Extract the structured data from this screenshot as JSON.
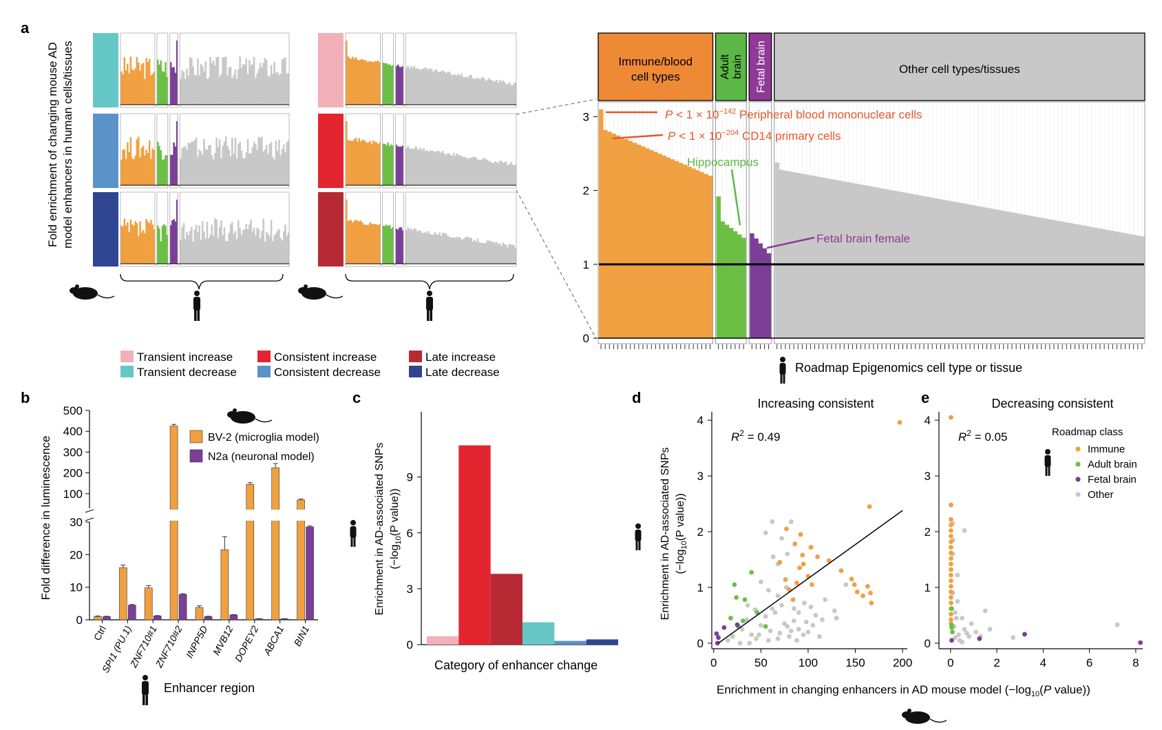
{
  "panel_labels": {
    "a": "a",
    "b": "b",
    "c": "c",
    "d": "d",
    "e": "e"
  },
  "colors": {
    "immune": "#f0a040",
    "adult_brain": "#6cbf45",
    "fetal_brain": "#7b3f98",
    "other": "#c8c8c8",
    "transient_increase": "#f2b0b8",
    "transient_decrease": "#66c7c7",
    "consistent_increase": "#e32530",
    "consistent_decrease": "#5b93c8",
    "late_increase": "#b82a33",
    "late_decrease": "#2e4592",
    "bv2": "#f0a040",
    "n2a": "#7b3f98",
    "header_immune": "#ee8a35",
    "header_adult": "#5cb846",
    "header_fetal": "#8f3a96",
    "header_other": "#c8c8c8"
  },
  "panel_a": {
    "ylabel_line1": "Fold enrichment of changing mouse AD",
    "ylabel_line2": "model enhancers in human cells/tissues",
    "legend": [
      {
        "label": "Transient increase",
        "color_key": "transient_increase"
      },
      {
        "label": "Transient decrease",
        "color_key": "transient_decrease"
      },
      {
        "label": "Consistent increase",
        "color_key": "consistent_increase"
      },
      {
        "label": "Consistent decrease",
        "color_key": "consistent_decrease"
      },
      {
        "label": "Late increase",
        "color_key": "late_increase"
      },
      {
        "label": "Late decrease",
        "color_key": "late_decrease"
      }
    ],
    "main_chart": {
      "type": "bar",
      "group_headers": [
        {
          "label_lines": [
            "Immune/blood",
            "cell types"
          ],
          "color_key": "header_immune"
        },
        {
          "label_lines": [
            "Adult",
            "brain"
          ],
          "color_key": "header_adult"
        },
        {
          "label_lines": [
            "Fetal brain"
          ],
          "color_key": "header_fetal"
        },
        {
          "label_lines": [
            "Other cell types/tissues"
          ],
          "color_key": "header_other"
        }
      ],
      "yticks": [
        "0",
        "1",
        "2",
        "3"
      ],
      "ylim": [
        0,
        3.2
      ],
      "reference_line": 1,
      "xlabel": "Roadmap Epigenomics cell type or tissue",
      "groups": [
        {
          "name": "Immune",
          "color_key": "immune",
          "count": 27,
          "start": 3.1,
          "second": 2.82,
          "end": 2.2
        },
        {
          "name": "Adult brain",
          "color_key": "adult_brain",
          "count": 7,
          "start": 1.92,
          "second": 1.58,
          "end": 1.36
        },
        {
          "name": "Fetal brain",
          "color_key": "fetal_brain",
          "count": 5,
          "start": 1.42,
          "second": 1.35,
          "end": 1.15
        },
        {
          "name": "Other",
          "color_key": "other",
          "count": 88,
          "start": 2.38,
          "second": 2.28,
          "end": 1.38
        }
      ],
      "annotations": [
        {
          "prefix": "P < 1 × 10",
          "exponent": "−142",
          "suffix": " Peripheral blood mononuclear cells",
          "color": "#e8562a"
        },
        {
          "prefix": "P < 1 × 10",
          "exponent": "−204",
          "suffix": " CD14 primary cells",
          "color": "#e8562a"
        },
        {
          "text": "Hippocampus",
          "color": "#5cb846"
        },
        {
          "text": "Fetal brain female",
          "color": "#8f3a96"
        }
      ]
    },
    "mini_charts": [
      {
        "color_key": "transient_decrease",
        "pattern": "noisy",
        "level": 0.55
      },
      {
        "color_key": "consistent_decrease",
        "pattern": "noisy",
        "level": 0.55
      },
      {
        "color_key": "late_decrease",
        "pattern": "noisy",
        "level": 0.5
      },
      {
        "color_key": "transient_increase",
        "pattern": "descending",
        "level": 0.7
      },
      {
        "color_key": "consistent_increase",
        "pattern": "descending",
        "level": 0.7
      },
      {
        "color_key": "late_increase",
        "pattern": "descending",
        "level": 0.65
      }
    ]
  },
  "panel_b": {
    "type": "bar",
    "ylabel": "Fold difference in luminescence",
    "xlabel": "Enhancer region",
    "categories": [
      "Ctrl",
      "SPI1 (PU.1)",
      "ZNF710#1",
      "ZNF710#2",
      "INPP5D",
      "MVB12",
      "DOPEY2",
      "ABCA1",
      "BIN1"
    ],
    "series": [
      {
        "name": "BV-2 (microglia model)",
        "color_key": "bv2",
        "values": [
          1.0,
          16.0,
          9.8,
          425,
          3.8,
          21.5,
          145,
          225,
          70
        ],
        "errors": [
          0.2,
          0.8,
          0.7,
          8,
          0.5,
          4.0,
          8,
          20,
          4
        ]
      },
      {
        "name": "N2a (neuronal model)",
        "color_key": "n2a",
        "values": [
          1.0,
          4.5,
          1.2,
          7.8,
          1.0,
          1.5,
          0.3,
          0.3,
          28.5
        ],
        "errors": [
          0.1,
          0.2,
          0.1,
          0.2,
          0.1,
          0.1,
          0.05,
          0.05,
          0.3
        ]
      }
    ],
    "yticks_lower": [
      "0",
      "10",
      "20",
      "30"
    ],
    "yticks_upper": [
      "100",
      "200",
      "300",
      "400",
      "500"
    ],
    "ylim_lower": [
      0,
      30
    ],
    "ylim_upper": [
      30,
      500
    ]
  },
  "panel_c": {
    "type": "bar",
    "ylabel_line1": "Enrichment in AD-associated SNPs",
    "ylabel_line2_prefix": "(−log",
    "ylabel_line2_sub": "10",
    "ylabel_line2_suffix": "(P value))",
    "xlabel": "Category of enhancer change",
    "categories": [
      "Transient increase",
      "Consistent increase",
      "Late increase",
      "Transient decrease",
      "Consistent decrease",
      "Late decrease"
    ],
    "values": [
      0.45,
      10.7,
      3.8,
      1.2,
      0.2,
      0.28
    ],
    "color_keys": [
      "transient_increase",
      "consistent_increase",
      "late_increase",
      "transient_decrease",
      "consistent_decrease",
      "late_decrease"
    ],
    "yticks": [
      "0",
      "3",
      "6",
      "9"
    ],
    "ylim": [
      0,
      12.5
    ]
  },
  "panel_d": {
    "type": "scatter",
    "title": "Increasing consistent",
    "r2_label": "R",
    "r2_sup": "2",
    "r2_value": " = 0.49",
    "ylabel_line1": "Enrichment in AD-associated SNPs",
    "ylabel_line2_prefix": "(−log",
    "ylabel_line2_sub": "10",
    "ylabel_line2_suffix": "(P value))",
    "xticks": [
      "0",
      "50",
      "100",
      "150",
      "200"
    ],
    "yticks": [
      "0",
      "1",
      "2",
      "3",
      "4"
    ],
    "xlim": [
      -2,
      205
    ],
    "ylim": [
      -0.1,
      4.15
    ],
    "fit_line": [
      [
        5,
        0.0
      ],
      [
        200,
        2.38
      ]
    ],
    "points": {
      "immune": [
        [
          197,
          3.96
        ],
        [
          165,
          2.45
        ],
        [
          77,
          2.05
        ],
        [
          92,
          1.95
        ],
        [
          86,
          1.78
        ],
        [
          103,
          1.72
        ],
        [
          110,
          1.55
        ],
        [
          122,
          1.48
        ],
        [
          135,
          1.3
        ],
        [
          146,
          1.15
        ],
        [
          149,
          1.05
        ],
        [
          152,
          0.92
        ],
        [
          158,
          0.85
        ],
        [
          163,
          1.02
        ],
        [
          166,
          0.9
        ],
        [
          167,
          0.72
        ],
        [
          94,
          1.58
        ],
        [
          100,
          1.2
        ],
        [
          91,
          1.35
        ],
        [
          88,
          1.08
        ],
        [
          80,
          0.96
        ],
        [
          76,
          1.14
        ],
        [
          84,
          0.78
        ],
        [
          104,
          1.05
        ],
        [
          70,
          1.45
        ],
        [
          95,
          1.42
        ]
      ],
      "adult": [
        [
          22,
          1.05
        ],
        [
          40,
          1.27
        ],
        [
          24,
          0.82
        ],
        [
          33,
          0.78
        ],
        [
          46,
          0.55
        ],
        [
          31,
          0.4
        ],
        [
          18,
          0.45
        ],
        [
          55,
          0.3
        ],
        [
          26,
          0.3
        ]
      ],
      "fetal": [
        [
          4,
          0.0
        ],
        [
          5,
          0.1
        ],
        [
          3,
          0.17
        ],
        [
          11,
          0.28
        ],
        [
          25,
          0.33
        ]
      ],
      "other": [
        [
          55,
          1.98
        ],
        [
          62,
          2.18
        ],
        [
          72,
          1.88
        ],
        [
          82,
          2.18
        ],
        [
          68,
          1.42
        ],
        [
          78,
          1.6
        ],
        [
          63,
          1.55
        ],
        [
          50,
          1.1
        ],
        [
          58,
          0.95
        ],
        [
          68,
          0.85
        ],
        [
          77,
          1.0
        ],
        [
          85,
          0.62
        ],
        [
          90,
          0.55
        ],
        [
          96,
          0.72
        ],
        [
          103,
          0.65
        ],
        [
          108,
          0.5
        ],
        [
          115,
          0.42
        ],
        [
          130,
          0.45
        ],
        [
          140,
          1.05
        ],
        [
          128,
          0.58
        ],
        [
          118,
          0.78
        ],
        [
          30,
          0.25
        ],
        [
          40,
          0.15
        ],
        [
          50,
          0.32
        ],
        [
          60,
          0.22
        ],
        [
          45,
          0.08
        ],
        [
          70,
          0.18
        ],
        [
          80,
          0.12
        ],
        [
          90,
          0.25
        ],
        [
          100,
          0.2
        ],
        [
          35,
          0.42
        ],
        [
          55,
          0.48
        ],
        [
          65,
          0.55
        ],
        [
          75,
          0.35
        ],
        [
          85,
          0.4
        ],
        [
          20,
          0.12
        ],
        [
          15,
          0.05
        ],
        [
          28,
          0.0
        ],
        [
          38,
          0.0
        ],
        [
          48,
          0.15
        ],
        [
          58,
          0.05
        ],
        [
          68,
          0.08
        ],
        [
          78,
          0.3
        ],
        [
          88,
          0.05
        ],
        [
          95,
          0.15
        ],
        [
          105,
          0.32
        ],
        [
          112,
          0.12
        ],
        [
          62,
          0.62
        ],
        [
          44,
          0.6
        ],
        [
          36,
          0.68
        ],
        [
          72,
          0.68
        ],
        [
          82,
          0.22
        ],
        [
          98,
          0.38
        ]
      ]
    }
  },
  "panel_e": {
    "type": "scatter",
    "title": "Decreasing consistent",
    "r2_label": "R",
    "r2_sup": "2",
    "r2_value": " = 0.05",
    "xticks": [
      "0",
      "2",
      "4",
      "6",
      "8"
    ],
    "yticks": [
      "0",
      "1",
      "2",
      "3",
      "4"
    ],
    "xlim": [
      -0.5,
      8.3
    ],
    "ylim": [
      -0.1,
      4.15
    ],
    "legend_title": "Roadmap class",
    "legend": [
      {
        "label": "Immune",
        "color_key": "immune"
      },
      {
        "label": "Adult brain",
        "color_key": "adult_brain"
      },
      {
        "label": "Fetal brain",
        "color_key": "fetal_brain"
      },
      {
        "label": "Other",
        "color_key": "other"
      }
    ],
    "points": {
      "immune": [
        [
          0.02,
          4.05
        ],
        [
          0.02,
          2.48
        ],
        [
          0.02,
          2.22
        ],
        [
          0.02,
          2.12
        ],
        [
          0.02,
          2.02
        ],
        [
          0.02,
          1.92
        ],
        [
          0.02,
          1.82
        ],
        [
          0.02,
          1.72
        ],
        [
          0.02,
          1.62
        ],
        [
          0.02,
          1.52
        ],
        [
          0.02,
          1.42
        ],
        [
          0.02,
          1.32
        ],
        [
          0.02,
          1.22
        ],
        [
          0.02,
          1.12
        ],
        [
          0.02,
          1.02
        ],
        [
          0.02,
          0.92
        ],
        [
          0.02,
          0.82
        ],
        [
          0.02,
          0.72
        ],
        [
          0.02,
          0.62
        ],
        [
          0.02,
          0.52
        ],
        [
          0.02,
          0.42
        ],
        [
          0.02,
          0.35
        ]
      ],
      "adult": [
        [
          0.05,
          0.32
        ],
        [
          0.05,
          0.28
        ],
        [
          0.05,
          0.62
        ],
        [
          0.08,
          0.2
        ]
      ],
      "fetal": [
        [
          3.2,
          0.16
        ],
        [
          8.2,
          0.01
        ],
        [
          1.25,
          0.08
        ],
        [
          0.05,
          0.05
        ]
      ],
      "other": [
        [
          0.5,
          0.45
        ],
        [
          1.5,
          0.58
        ],
        [
          7.2,
          0.33
        ],
        [
          2.7,
          0.1
        ],
        [
          0.3,
          1.22
        ],
        [
          0.6,
          2.02
        ],
        [
          0.3,
          0.75
        ],
        [
          0.9,
          0.35
        ],
        [
          1.1,
          0.2
        ],
        [
          0.6,
          0.25
        ],
        [
          0.8,
          0.12
        ],
        [
          0.2,
          0.1
        ],
        [
          0.4,
          0.05
        ],
        [
          0.15,
          0.3
        ],
        [
          0.2,
          0.55
        ],
        [
          0.1,
          1.6
        ],
        [
          0.1,
          1.85
        ],
        [
          0.1,
          2.15
        ],
        [
          0.1,
          0.9
        ],
        [
          1.7,
          0.25
        ],
        [
          0.35,
          0.15
        ],
        [
          0.5,
          0.02
        ],
        [
          0.7,
          0.18
        ],
        [
          0.25,
          0.45
        ],
        [
          1.3,
          0.12
        ]
      ]
    }
  }
}
